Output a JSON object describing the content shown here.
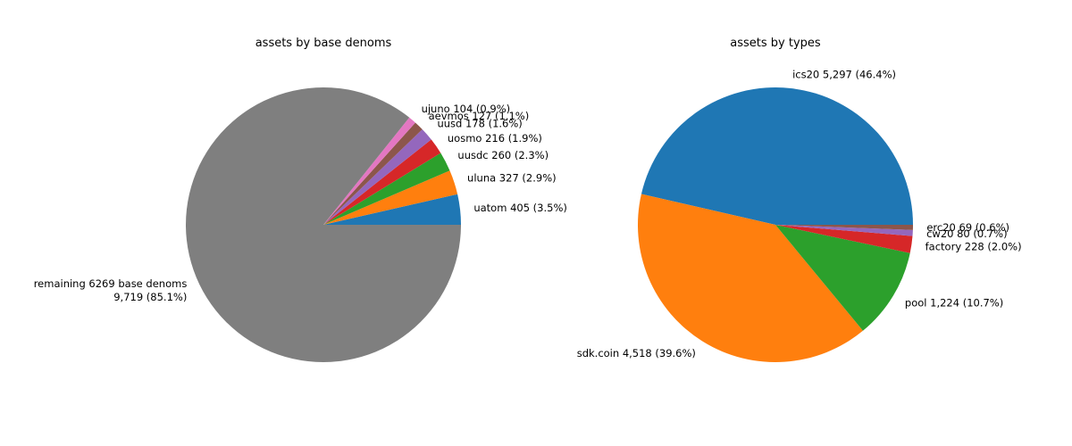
{
  "chart_data": [
    {
      "type": "pie",
      "title": "assets by base denoms",
      "start_angle_deg": 0,
      "direction": "counterclockwise",
      "slices": [
        {
          "label": "uatom  405 (3.5%)",
          "value": 405,
          "color": "#1f77b4"
        },
        {
          "label": "uluna  327 (2.9%)",
          "value": 327,
          "color": "#ff7f0e"
        },
        {
          "label": "uusdc  260 (2.3%)",
          "value": 260,
          "color": "#2ca02c"
        },
        {
          "label": "uosmo  216 (1.9%)",
          "value": 216,
          "color": "#d62728"
        },
        {
          "label": "uusd  178 (1.6%)",
          "value": 178,
          "color": "#9467bd"
        },
        {
          "label": "aevmos  127 (1.1%)",
          "value": 127,
          "color": "#8c564b"
        },
        {
          "label": "ujuno  104 (0.9%)",
          "value": 104,
          "color": "#e377c2"
        },
        {
          "label": "remaining 6269 base denoms\n9,719 (85.1%)",
          "value": 9719,
          "color": "#7f7f7f"
        }
      ]
    },
    {
      "type": "pie",
      "title": "assets by types",
      "start_angle_deg": 0,
      "direction": "counterclockwise",
      "slices": [
        {
          "label": "ics20  5,297 (46.4%)",
          "value": 5297,
          "color": "#1f77b4"
        },
        {
          "label": "sdk.coin  4,518 (39.6%)",
          "value": 4518,
          "color": "#ff7f0e"
        },
        {
          "label": "pool  1,224 (10.7%)",
          "value": 1224,
          "color": "#2ca02c"
        },
        {
          "label": "factory  228 (2.0%)",
          "value": 228,
          "color": "#d62728"
        },
        {
          "label": "cw20  80 (0.7%)",
          "value": 80,
          "color": "#9467bd"
        },
        {
          "label": "erc20  69 (0.6%)",
          "value": 69,
          "color": "#8c564b"
        }
      ]
    }
  ]
}
